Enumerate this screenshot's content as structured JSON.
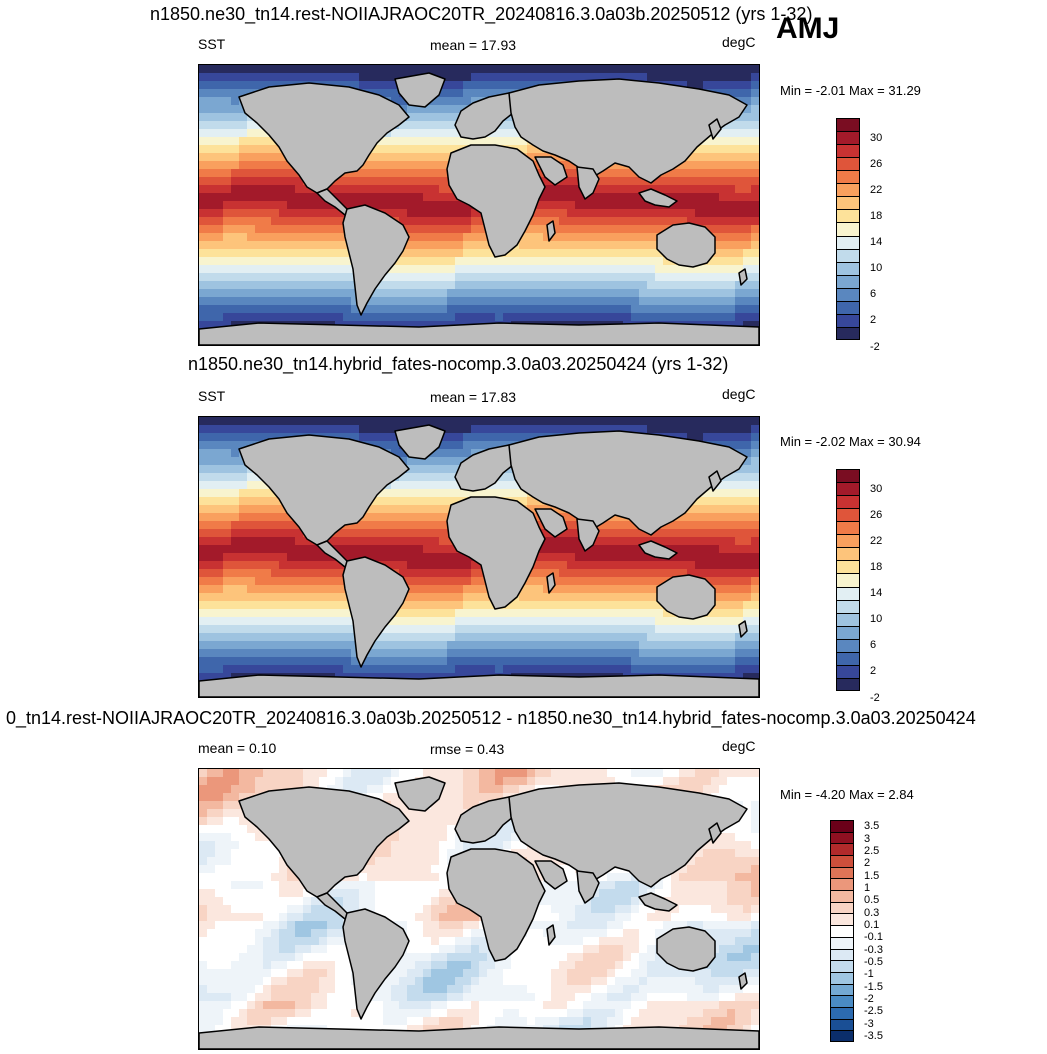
{
  "season": "AMJ",
  "panels": [
    {
      "title": "n1850.ne30_tn14.rest-NOIIAJRAOC20TR_20240816.3.0a03b.20250512 (yrs 1-32)",
      "left_label": "SST",
      "center_label": "mean =  17.93",
      "units": "degC",
      "minmax": "Min =  -2.01 Max =  31.29",
      "colorbar_ticks": [
        "30",
        "26",
        "22",
        "18",
        "14",
        "10",
        "6",
        "2",
        "-2"
      ],
      "colors": [
        "#272a5d",
        "#37479a",
        "#3f66ab",
        "#5a87bf",
        "#7ba7d1",
        "#9ec3e0",
        "#c1dbeb",
        "#e2eff3",
        "#f8f4cf",
        "#fde29a",
        "#fdc47b",
        "#f9a05e",
        "#f07b48",
        "#df553a",
        "#c83232",
        "#a31a2a",
        "#7a0d22"
      ],
      "colorbar_ramp": "sequential",
      "contour_field": "sst"
    },
    {
      "title": "n1850.ne30_tn14.hybrid_fates-nocomp.3.0a03.20250424 (yrs 1-32)",
      "left_label": "SST",
      "center_label": "mean =  17.83",
      "units": "degC",
      "minmax": "Min =  -2.02 Max =  30.94",
      "colorbar_ticks": [
        "30",
        "26",
        "22",
        "18",
        "14",
        "10",
        "6",
        "2",
        "-2"
      ],
      "colors": [
        "#272a5d",
        "#37479a",
        "#3f66ab",
        "#5a87bf",
        "#7ba7d1",
        "#9ec3e0",
        "#c1dbeb",
        "#e2eff3",
        "#f8f4cf",
        "#fde29a",
        "#fdc47b",
        "#f9a05e",
        "#f07b48",
        "#df553a",
        "#c83232",
        "#a31a2a",
        "#7a0d22"
      ],
      "colorbar_ramp": "sequential",
      "contour_field": "sst"
    },
    {
      "title": "0_tn14.rest-NOIIAJRAOC20TR_20240816.3.0a03b.20250512 - n1850.ne30_tn14.hybrid_fates-nocomp.3.0a03.20250424",
      "left_label": "mean =   0.10",
      "center_label": "rmse =   0.43",
      "units": "degC",
      "minmax": "Min =  -4.20 Max =   2.84",
      "colorbar_ticks": [
        "3.5",
        "3",
        "2.5",
        "2",
        "1.5",
        "1",
        "0.5",
        "0.3",
        "0.1",
        "-0.1",
        "-0.3",
        "-0.5",
        "-1",
        "-1.5",
        "-2",
        "-2.5",
        "-3",
        "-3.5"
      ],
      "colors": [
        "#0b2e6b",
        "#1a4f95",
        "#2c6bb0",
        "#4a8bc4",
        "#74a9d3",
        "#9fc6e2",
        "#c3dbed",
        "#dce9f4",
        "#eef4f9",
        "#ffffff",
        "#fbe7de",
        "#f8d4c4",
        "#f3b8a0",
        "#eb977b",
        "#df7457",
        "#cd4f3b",
        "#b12a2b",
        "#8f1021",
        "#6b0019"
      ],
      "colorbar_ramp": "diverging",
      "contour_field": "diff"
    }
  ]
}
